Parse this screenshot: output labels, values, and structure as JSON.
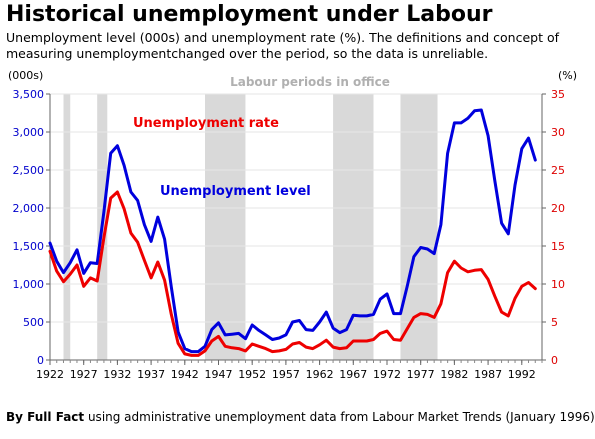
{
  "title": "Historical unemployment under Labour",
  "subtitle": "Unemployment level (000s) and unemployment rate (%). The definitions and concept of measuring unemploymentchanged over the period, so the data is unreliable.",
  "footer": {
    "lead": "By Full Fact",
    "rest": " using administrative unemployment data from Labour Market Trends (January 1996)"
  },
  "chart_data": {
    "type": "line",
    "left_axis_unit": "(000s)",
    "right_axis_unit": "(%)",
    "labour_periods_label": "Labour periods in office",
    "left_ylim": [
      0,
      3500
    ],
    "right_ylim": [
      0,
      35
    ],
    "left_ticks": [
      "0",
      "500",
      "1,000",
      "1,500",
      "2,000",
      "2,500",
      "3,000",
      "3,500"
    ],
    "right_ticks": [
      "0",
      "5",
      "10",
      "15",
      "20",
      "25",
      "30",
      "35"
    ],
    "x_ticks": [
      "1922",
      "1927",
      "1932",
      "1937",
      "1942",
      "1947",
      "1952",
      "1957",
      "1962",
      "1967",
      "1972",
      "1977",
      "1982",
      "1987",
      "1992"
    ],
    "xlim": [
      1922,
      1995
    ],
    "labour_periods": [
      [
        1924,
        1925
      ],
      [
        1929,
        1930.5
      ],
      [
        1945,
        1951
      ],
      [
        1964,
        1970
      ],
      [
        1974,
        1979.5
      ]
    ],
    "grid": true,
    "colors": {
      "level": "#0000dd",
      "rate": "#ee0000",
      "periods": "#d9d9d9"
    },
    "series": [
      {
        "name": "Unemployment level",
        "axis": "left",
        "x": [
          1922,
          1923,
          1924,
          1925,
          1926,
          1927,
          1928,
          1929,
          1930,
          1931,
          1932,
          1933,
          1934,
          1935,
          1936,
          1937,
          1938,
          1939,
          1940,
          1941,
          1942,
          1943,
          1944,
          1945,
          1946,
          1947,
          1948,
          1949,
          1950,
          1951,
          1952,
          1953,
          1954,
          1955,
          1956,
          1957,
          1958,
          1959,
          1960,
          1961,
          1962,
          1963,
          1964,
          1965,
          1966,
          1967,
          1968,
          1969,
          1970,
          1971,
          1972,
          1973,
          1974,
          1975,
          1976,
          1977,
          1978,
          1979,
          1980,
          1981,
          1982,
          1983,
          1984,
          1985,
          1986,
          1987,
          1988,
          1989,
          1990,
          1991,
          1992,
          1993,
          1994
        ],
        "y": [
          1540,
          1300,
          1150,
          1280,
          1450,
          1140,
          1280,
          1270,
          1950,
          2720,
          2820,
          2560,
          2210,
          2100,
          1780,
          1560,
          1880,
          1590,
          960,
          370,
          150,
          110,
          110,
          180,
          400,
          490,
          330,
          340,
          350,
          280,
          460,
          390,
          330,
          270,
          290,
          330,
          500,
          520,
          400,
          390,
          500,
          630,
          420,
          360,
          400,
          590,
          580,
          580,
          600,
          800,
          870,
          610,
          610,
          970,
          1360,
          1480,
          1460,
          1400,
          1780,
          2720,
          3120,
          3120,
          3180,
          3280,
          3290,
          2950,
          2360,
          1800,
          1660,
          2300,
          2780,
          2920,
          2630
        ]
      },
      {
        "name": "Unemployment rate",
        "axis": "right",
        "x": [
          1922,
          1923,
          1924,
          1925,
          1926,
          1927,
          1928,
          1929,
          1930,
          1931,
          1932,
          1933,
          1934,
          1935,
          1936,
          1937,
          1938,
          1939,
          1940,
          1941,
          1942,
          1943,
          1944,
          1945,
          1946,
          1947,
          1948,
          1949,
          1950,
          1951,
          1952,
          1953,
          1954,
          1955,
          1956,
          1957,
          1958,
          1959,
          1960,
          1961,
          1962,
          1963,
          1964,
          1965,
          1966,
          1967,
          1968,
          1969,
          1970,
          1971,
          1972,
          1973,
          1974,
          1975,
          1976,
          1977,
          1978,
          1979,
          1980,
          1981,
          1982,
          1983,
          1984,
          1985,
          1986,
          1987,
          1988,
          1989,
          1990,
          1991,
          1992,
          1993,
          1994
        ],
        "y": [
          14.3,
          11.7,
          10.3,
          11.3,
          12.5,
          9.7,
          10.8,
          10.4,
          16.1,
          21.3,
          22.1,
          19.9,
          16.7,
          15.5,
          13.1,
          10.8,
          12.9,
          10.5,
          6.0,
          2.2,
          0.8,
          0.6,
          0.6,
          1.2,
          2.5,
          3.1,
          1.8,
          1.6,
          1.5,
          1.2,
          2.1,
          1.8,
          1.5,
          1.1,
          1.2,
          1.4,
          2.1,
          2.3,
          1.7,
          1.5,
          2.0,
          2.6,
          1.7,
          1.5,
          1.6,
          2.5,
          2.5,
          2.5,
          2.7,
          3.5,
          3.8,
          2.7,
          2.6,
          4.1,
          5.6,
          6.1,
          6.0,
          5.6,
          7.4,
          11.5,
          13.0,
          12.1,
          11.6,
          11.8,
          11.9,
          10.6,
          8.4,
          6.3,
          5.8,
          8.1,
          9.7,
          10.2,
          9.4
        ]
      }
    ],
    "annotations": [
      {
        "text": "Unemployment rate",
        "color": "#ee0000"
      },
      {
        "text": "Unemployment level",
        "color": "#0000dd"
      }
    ]
  }
}
